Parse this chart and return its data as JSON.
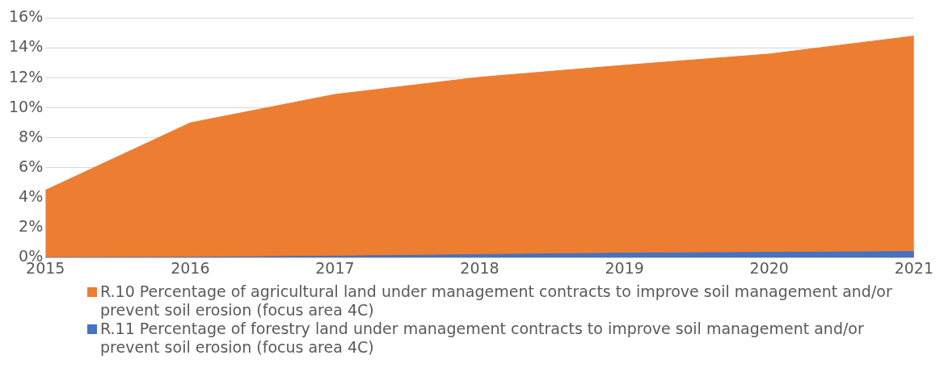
{
  "chart_data": {
    "type": "area",
    "x": [
      2015,
      2016,
      2017,
      2018,
      2019,
      2020,
      2021
    ],
    "series": [
      {
        "name": "R.10 Percentage of agricultural land under management contracts to improve soil management and/or prevent soil erosion (focus area 4C)",
        "color": "#ed7d31",
        "values": [
          4.5,
          9.0,
          10.9,
          12.05,
          12.85,
          13.6,
          14.8
        ]
      },
      {
        "name": "R.11 Percentage of forestry land under management contracts to improve soil management and/or prevent soil erosion (focus area 4C)",
        "color": "#4472c4",
        "values": [
          0,
          0.02,
          0.1,
          0.2,
          0.3,
          0.35,
          0.4
        ]
      }
    ],
    "xlim": [
      2015,
      2021
    ],
    "xticks": [
      2015,
      2016,
      2017,
      2018,
      2019,
      2020,
      2021
    ],
    "ylim": [
      0,
      16
    ],
    "yticks": [
      {
        "value": 0,
        "label": "0%"
      },
      {
        "value": 2,
        "label": "2%"
      },
      {
        "value": 4,
        "label": "4%"
      },
      {
        "value": 6,
        "label": "6%"
      },
      {
        "value": 8,
        "label": "8%"
      },
      {
        "value": 10,
        "label": "10%"
      },
      {
        "value": 12,
        "label": "12%"
      },
      {
        "value": 14,
        "label": "14%"
      },
      {
        "value": 16,
        "label": "16%"
      }
    ],
    "grid": "y",
    "legend": "bottom"
  }
}
